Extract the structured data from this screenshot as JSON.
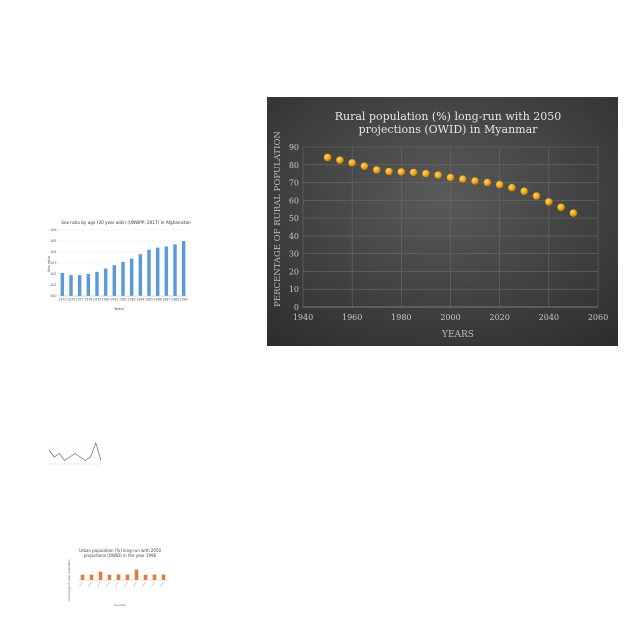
{
  "colors": {
    "bar_blue": "#5b9bd5",
    "point_gold": "#e8a623",
    "bar_orange": "#e07b39",
    "dark_bg": "#3e3e3e"
  },
  "chart_data": [
    {
      "type": "bar",
      "title": "Sex ratio by age (20 year olds) (UNWPP, 2017) in Afghanistan",
      "xlabel": "Years",
      "ylabel": "Sex ratio",
      "categories": [
        "1975",
        "1976",
        "1977",
        "1978",
        "1979",
        "1980",
        "1981",
        "1982",
        "1983",
        "1984",
        "1985",
        "1986",
        "1987",
        "1988",
        "1989"
      ],
      "values": [
        102.1,
        101.9,
        101.9,
        102.0,
        102.2,
        102.5,
        102.8,
        103.1,
        103.4,
        103.8,
        104.2,
        104.4,
        104.5,
        104.7,
        105.0
      ],
      "ylim": [
        100,
        106
      ],
      "yticks": [
        "100",
        "101",
        "102",
        "103",
        "104",
        "105",
        "106"
      ]
    },
    {
      "type": "scatter",
      "title_line1": "Rural population (%) long-run with 2050",
      "title_line2": "projections (OWID) in Myanmar",
      "xlabel": "YEARS",
      "ylabel": "PERCENTAGE OF RURAL POPULATION",
      "xlim": [
        1940,
        2060
      ],
      "ylim": [
        0,
        90
      ],
      "xticks": [
        "1940",
        "1960",
        "1980",
        "2000",
        "2020",
        "2040",
        "2060"
      ],
      "yticks": [
        "0",
        "10",
        "20",
        "30",
        "40",
        "50",
        "60",
        "70",
        "80",
        "90"
      ],
      "grid": true,
      "x": [
        1950,
        1955,
        1960,
        1965,
        1970,
        1975,
        1980,
        1985,
        1990,
        1995,
        2000,
        2005,
        2010,
        2015,
        2020,
        2025,
        2030,
        2035,
        2040,
        2045,
        2050
      ],
      "y": [
        84.1,
        82.6,
        81.1,
        79.2,
        77.1,
        76.2,
        76.0,
        75.7,
        75.0,
        74.2,
        72.8,
        71.9,
        70.9,
        70.0,
        68.8,
        67.1,
        65.1,
        62.4,
        59.1,
        56.1,
        52.8
      ]
    },
    {
      "type": "line",
      "title": "",
      "values": [
        4,
        2,
        3,
        1,
        2,
        3,
        2,
        1,
        2,
        6,
        1
      ]
    },
    {
      "type": "bar",
      "title_line1": "Urban population (%) long-run with 2050",
      "title_line2": "projections (OWID) in the year 1996",
      "xlabel": "Country",
      "ylabel": "Percentage of urban population",
      "categories": [
        "",
        "",
        "",
        "",
        "",
        "",
        "",
        "",
        "",
        ""
      ],
      "values": [
        29,
        30,
        46,
        29,
        31,
        30,
        58,
        29,
        30,
        30
      ],
      "ylim": [
        0,
        100
      ]
    }
  ]
}
